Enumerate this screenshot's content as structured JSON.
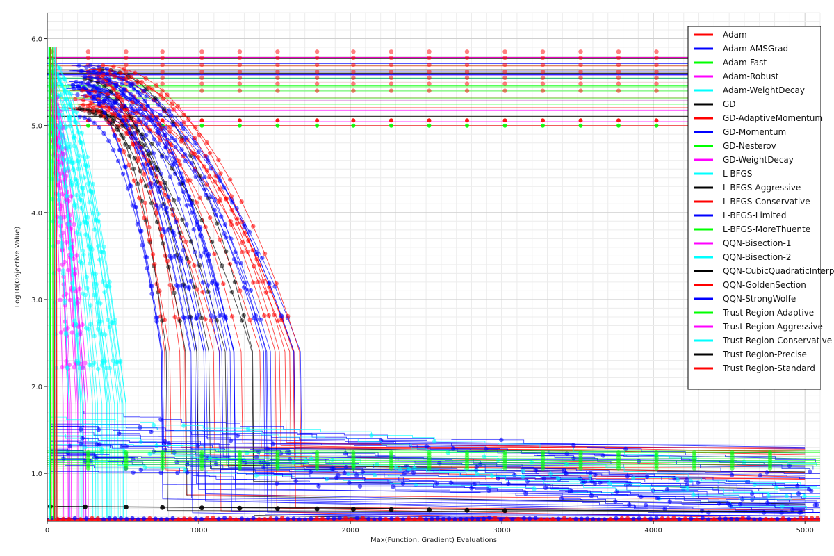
{
  "chart_data": {
    "type": "line",
    "xlabel": "Max(Function, Gradient) Evaluations",
    "ylabel": "Log10(Objective Value)",
    "xlim": [
      0,
      5100
    ],
    "ylim": [
      0.45,
      6.3
    ],
    "x_ticks": [
      0,
      1000,
      2000,
      3000,
      4000,
      5000
    ],
    "y_ticks": [
      1.0,
      2.0,
      3.0,
      4.0,
      5.0,
      6.0
    ],
    "x_tick_labels": [
      "0",
      "1000",
      "2000",
      "3000",
      "4000",
      "5000"
    ],
    "y_tick_labels": [
      "1.0",
      "2.0",
      "3.0",
      "4.0",
      "5.0",
      "6.0"
    ],
    "grid": true,
    "legend_position": "top-right",
    "series": [
      {
        "name": "Adam",
        "color": "#ff0000"
      },
      {
        "name": "Adam-AMSGrad",
        "color": "#0000ff"
      },
      {
        "name": "Adam-Fast",
        "color": "#00ff00"
      },
      {
        "name": "Adam-Robust",
        "color": "#ff00ff"
      },
      {
        "name": "Adam-WeightDecay",
        "color": "#00ffff"
      },
      {
        "name": "GD",
        "color": "#000000"
      },
      {
        "name": "GD-AdaptiveMomentum",
        "color": "#ff0000"
      },
      {
        "name": "GD-Momentum",
        "color": "#0000ff"
      },
      {
        "name": "GD-Nesterov",
        "color": "#00ff00"
      },
      {
        "name": "GD-WeightDecay",
        "color": "#ff00ff"
      },
      {
        "name": "L-BFGS",
        "color": "#00ffff"
      },
      {
        "name": "L-BFGS-Aggressive",
        "color": "#000000"
      },
      {
        "name": "L-BFGS-Conservative",
        "color": "#ff0000"
      },
      {
        "name": "L-BFGS-Limited",
        "color": "#0000ff"
      },
      {
        "name": "L-BFGS-MoreThuente",
        "color": "#00ff00"
      },
      {
        "name": "QQN-Bisection-1",
        "color": "#ff00ff"
      },
      {
        "name": "QQN-Bisection-2",
        "color": "#00ffff"
      },
      {
        "name": "QQN-CubicQuadraticInterpolation",
        "color": "#000000"
      },
      {
        "name": "QQN-GoldenSection",
        "color": "#ff0000"
      },
      {
        "name": "QQN-StrongWolfe",
        "color": "#0000ff"
      },
      {
        "name": "Trust Region-Adaptive",
        "color": "#00ff00"
      },
      {
        "name": "Trust Region-Aggressive",
        "color": "#ff00ff"
      },
      {
        "name": "Trust Region-Conservative",
        "color": "#00ffff"
      },
      {
        "name": "Trust Region-Precise",
        "color": "#000000"
      },
      {
        "name": "Trust Region-Standard",
        "color": "#ff0000"
      }
    ]
  }
}
